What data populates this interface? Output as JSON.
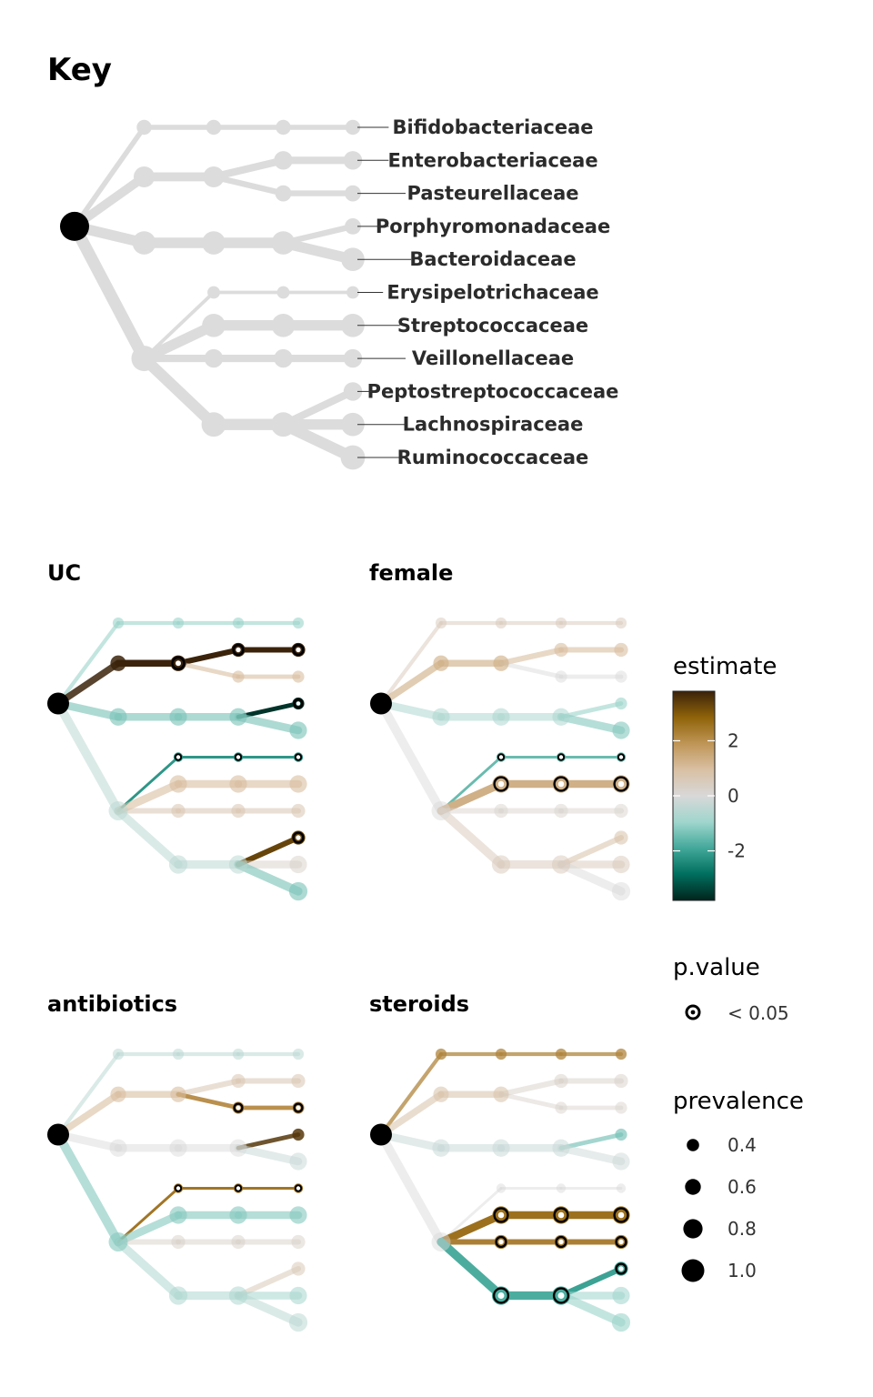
{
  "chart_data": {
    "type": "tree",
    "key_title": "Key",
    "families": [
      "Bifidobacteriaceae",
      "Enterobacteriaceae",
      "Pasteurellaceae",
      "Porphyromonadaceae",
      "Bacteroidaceae",
      "Erysipelotrichaceae",
      "Streptococcaceae",
      "Veillonellaceae",
      "Peptostreptococcaceae",
      "Lachnospiraceae",
      "Ruminococcaceae"
    ],
    "nodes": [
      {
        "id": "root",
        "prev": 1.0
      },
      {
        "id": "A",
        "parent": "root",
        "prev": 0.4
      },
      {
        "id": "A2",
        "parent": "A",
        "prev": 0.4
      },
      {
        "id": "A3",
        "parent": "A2",
        "prev": 0.4
      },
      {
        "id": "A4",
        "parent": "A3",
        "prev": 0.4,
        "label": "Bifidobacteriaceae"
      },
      {
        "id": "B",
        "parent": "root",
        "prev": 0.65
      },
      {
        "id": "B2",
        "parent": "B",
        "prev": 0.65
      },
      {
        "id": "B3",
        "parent": "B2",
        "prev": 0.55
      },
      {
        "id": "B3a",
        "parent": "B3",
        "prev": 0.55,
        "label": "Enterobacteriaceae"
      },
      {
        "id": "B4",
        "parent": "B2",
        "prev": 0.45
      },
      {
        "id": "B4a",
        "parent": "B4",
        "prev": 0.45,
        "label": "Pasteurellaceae"
      },
      {
        "id": "C",
        "parent": "root",
        "prev": 0.75
      },
      {
        "id": "C2",
        "parent": "C",
        "prev": 0.75
      },
      {
        "id": "C3",
        "parent": "C2",
        "prev": 0.75
      },
      {
        "id": "C4",
        "parent": "C3",
        "prev": 0.45,
        "label": "Porphyromonadaceae"
      },
      {
        "id": "C5",
        "parent": "C3",
        "prev": 0.75,
        "label": "Bacteroidaceae"
      },
      {
        "id": "D",
        "parent": "root",
        "prev": 0.85
      },
      {
        "id": "E1",
        "parent": "D",
        "prev": 0.3
      },
      {
        "id": "E2",
        "parent": "E1",
        "prev": 0.3
      },
      {
        "id": "E3",
        "parent": "E2",
        "prev": 0.3,
        "label": "Erysipelotrichaceae"
      },
      {
        "id": "F1",
        "parent": "D",
        "prev": 0.75
      },
      {
        "id": "F2",
        "parent": "F1",
        "prev": 0.75
      },
      {
        "id": "F3",
        "parent": "F2",
        "prev": 0.75,
        "label": "Streptococcaceae"
      },
      {
        "id": "G1",
        "parent": "D",
        "prev": 0.55
      },
      {
        "id": "G2",
        "parent": "G1",
        "prev": 0.55
      },
      {
        "id": "G3",
        "parent": "G2",
        "prev": 0.55,
        "label": "Veillonellaceae"
      },
      {
        "id": "H1",
        "parent": "D",
        "prev": 0.8
      },
      {
        "id": "H2",
        "parent": "H1",
        "prev": 0.8
      },
      {
        "id": "H3",
        "parent": "H2",
        "prev": 0.55,
        "label": "Peptostreptococcaceae"
      },
      {
        "id": "H4",
        "parent": "H2",
        "prev": 0.75,
        "label": "Lachnospiraceae"
      },
      {
        "id": "H5",
        "parent": "H2",
        "prev": 0.8,
        "label": "Ruminococcaceae"
      }
    ],
    "panels": [
      {
        "title": "UC",
        "estimates": {
          "A": -1,
          "A2": -1,
          "A3": -1,
          "A4": -1,
          "B": 3.8,
          "B2": 3.8,
          "B3": 3.8,
          "B3a": 3.8,
          "B4": 1,
          "B4a": 1,
          "C": -1.3,
          "C2": -1.3,
          "C3": -1.3,
          "C4": -3.6,
          "C5": -1.3,
          "D": -0.5,
          "E1": -2.2,
          "E2": -2.2,
          "E3": -2.2,
          "F1": 1,
          "F2": 1,
          "F3": 1,
          "G1": 0.7,
          "G2": 0.7,
          "G3": 0.7,
          "H1": -0.5,
          "H2": -0.5,
          "H3": 3.3,
          "H4": 0.3,
          "H5": -1.3
        },
        "significant": [
          "B2",
          "B3",
          "B3a",
          "C4",
          "E1",
          "E2",
          "E3",
          "H3"
        ]
      },
      {
        "title": "female",
        "estimates": {
          "A": 0.5,
          "A2": 0.5,
          "A3": 0.5,
          "A4": 0.5,
          "B": 1.3,
          "B2": 1.3,
          "B3": 1,
          "B3a": 1,
          "B4": 0,
          "B4a": 0,
          "C": -0.7,
          "C2": -0.7,
          "C3": -0.7,
          "C4": -1,
          "C5": -1.2,
          "D": 0,
          "E1": -1.5,
          "E2": -1.5,
          "E3": -1.5,
          "F1": 1.3,
          "F2": 1.3,
          "F3": 1.3,
          "G1": 0.2,
          "G2": 0.2,
          "G3": 0.2,
          "H1": 0.5,
          "H2": 0.5,
          "H3": 0.8,
          "H4": 0.5,
          "H5": 0
        },
        "significant": [
          "E1",
          "E2",
          "E3",
          "F1",
          "F2",
          "F3"
        ]
      },
      {
        "title": "antibiotics",
        "estimates": {
          "A": -0.5,
          "A2": -0.5,
          "A3": -0.5,
          "A4": -0.5,
          "B": 1,
          "B2": 1,
          "B3": 0.7,
          "B3a": 0.7,
          "B4": 2,
          "B4a": 2,
          "C": 0,
          "C2": 0,
          "C3": 0,
          "C4": 3.5,
          "C5": -0.3,
          "D": -1.2,
          "E1": 2.5,
          "E2": 2.5,
          "E3": 2.5,
          "F1": -1.2,
          "F2": -1.2,
          "F3": -1.2,
          "G1": 0.3,
          "G2": 0.3,
          "G3": 0.3,
          "H1": -0.7,
          "H2": -0.7,
          "H3": 0.6,
          "H4": -0.8,
          "H5": -0.5
        },
        "significant": [
          "B4",
          "B4a",
          "E1",
          "E2",
          "E3"
        ]
      },
      {
        "title": "steroids",
        "estimates": {
          "A": 2.2,
          "A2": 2.2,
          "A3": 2.2,
          "A4": 2.2,
          "B": 0.8,
          "B2": 0.8,
          "B3": 0.3,
          "B3a": 0.3,
          "B4": 0.2,
          "B4a": 0.2,
          "C": -0.3,
          "C2": -0.3,
          "C3": -0.3,
          "C4": -1.4,
          "C5": -0.2,
          "D": 0,
          "E1": 0,
          "E2": 0,
          "E3": 0,
          "F1": 2.6,
          "F2": 2.6,
          "F3": 2.6,
          "G1": 2.3,
          "G2": 2.3,
          "G3": 2.3,
          "H1": -1.8,
          "H2": -1.8,
          "H3": -2,
          "H4": -0.9,
          "H5": -1
        },
        "significant": [
          "F1",
          "F2",
          "F3",
          "G1",
          "G2",
          "G3",
          "H1",
          "H2",
          "H3"
        ]
      }
    ],
    "legend": {
      "estimate_title": "estimate",
      "estimate_ticks": [
        "2",
        "0",
        "-2"
      ],
      "estimate_tick_values": [
        2,
        0,
        -2
      ],
      "estimate_range": [
        -3.8,
        3.8
      ],
      "pvalue_title": "p.value",
      "pvalue_label": "< 0.05",
      "prevalence_title": "prevalence",
      "prevalence_labels": [
        "0.4",
        "0.6",
        "0.8",
        "1.0"
      ],
      "prevalence_values": [
        0.4,
        0.6,
        0.8,
        1.0
      ]
    },
    "colors": {
      "key_gray": "#dcdcdc",
      "root": "#000000",
      "scale": [
        "#00241c",
        "#006e5e",
        "#42a89a",
        "#9fd6cd",
        "#d8d8d8",
        "#d9c0a3",
        "#bf9556",
        "#8f6309",
        "#3b230b"
      ]
    }
  }
}
